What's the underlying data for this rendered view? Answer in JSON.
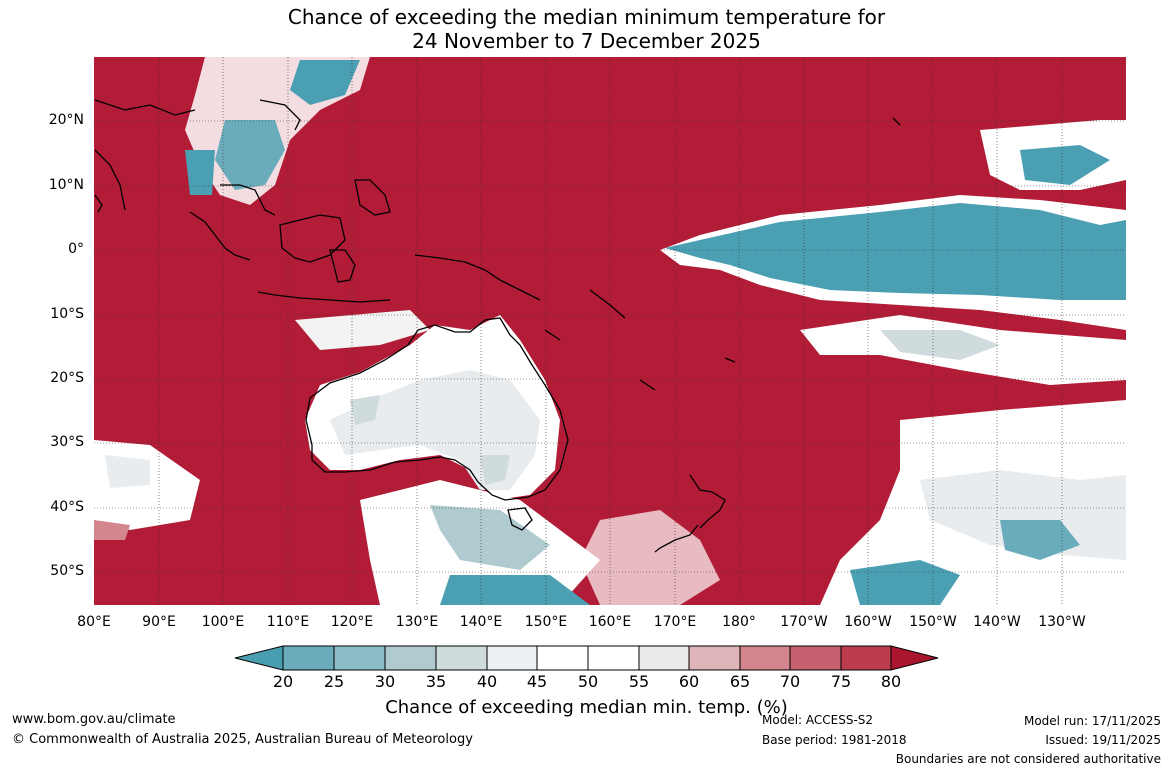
{
  "title": {
    "line1": "Chance of exceeding the median minimum temperature for",
    "line2": "24 November to 7 December 2025"
  },
  "map": {
    "lat_labels": [
      "20°N",
      "10°N",
      "0°",
      "10°S",
      "20°S",
      "30°S",
      "40°S",
      "50°S"
    ],
    "lon_labels": [
      "80°E",
      "90°E",
      "100°E",
      "110°E",
      "120°E",
      "130°E",
      "140°E",
      "150°E",
      "160°E",
      "170°E",
      "180°",
      "170°W",
      "160°W",
      "150°W",
      "140°W",
      "130°W"
    ],
    "colors": {
      "ocean_high": "#b21c36",
      "neutral": "#ffffff",
      "land_neutral": "#e8ecee",
      "low": "#4a9fb3"
    }
  },
  "colorbar": {
    "tick_labels": [
      "20",
      "25",
      "30",
      "35",
      "40",
      "45",
      "50",
      "55",
      "60",
      "65",
      "70",
      "75",
      "80"
    ],
    "colors": [
      "#4a9eb1",
      "#6aacbb",
      "#8cbcc6",
      "#afcbd0",
      "#cfdbdc",
      "#ebf1f3",
      "#ffffff",
      "#ffffff",
      "#ebebeb",
      "#dfb4b9",
      "#d4868f",
      "#c5616f",
      "#bb3d4d",
      "#a9162e"
    ],
    "title": "Chance of exceeding median min. temp. (%)"
  },
  "footer": {
    "website": "www.bom.gov.au/climate",
    "copyright": "© Commonwealth of Australia 2025, Australian Bureau of Meteorology",
    "model": "Model: ACCESS-S2",
    "base_period": "Base period: 1981-2018",
    "model_run": "Model run: 17/11/2025",
    "issued": "Issued: 19/11/2025",
    "disclaimer": "Boundaries are not considered authoritative"
  }
}
